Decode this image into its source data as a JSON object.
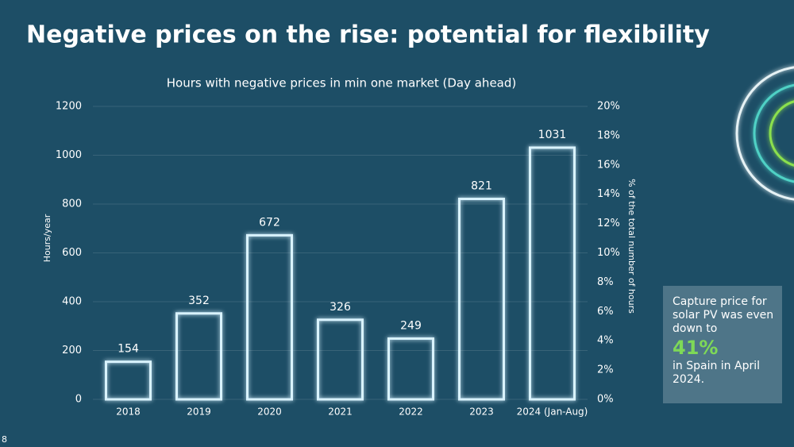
{
  "header": {
    "title": "Negative prices on the rise: potential for flexibility",
    "page_number": "8"
  },
  "chart_data": {
    "type": "bar",
    "title": "Hours with negative prices in min one market (Day ahead)",
    "categories": [
      "2018",
      "2019",
      "2020",
      "2021",
      "2022",
      "2023",
      "2024 (Jan-Aug)"
    ],
    "values": [
      154,
      352,
      672,
      326,
      249,
      821,
      1031
    ],
    "color": "#d9f3ff",
    "ylabel": "Hours/year",
    "y2label": "% of the total number of hours",
    "ylim": [
      0,
      1200
    ],
    "yticks": [
      0,
      200,
      400,
      600,
      800,
      1000,
      1200
    ],
    "y2lim": [
      0,
      20
    ],
    "y2ticks": [
      {
        "value": 0,
        "label": "0%"
      },
      {
        "value": 2,
        "label": "2%"
      },
      {
        "value": 4,
        "label": "4%"
      },
      {
        "value": 6,
        "label": "6%"
      },
      {
        "value": 8,
        "label": "8%"
      },
      {
        "value": 10,
        "label": "10%"
      },
      {
        "value": 12,
        "label": "12%"
      },
      {
        "value": 14,
        "label": "14%"
      },
      {
        "value": 16,
        "label": "16%"
      },
      {
        "value": 18,
        "label": "18%"
      },
      {
        "value": 20,
        "label": "20%"
      }
    ],
    "grid": true
  },
  "callout": {
    "text_top": "Capture price for solar PV was even down to",
    "highlight": "41%",
    "text_bottom": "in Spain in April 2024."
  }
}
